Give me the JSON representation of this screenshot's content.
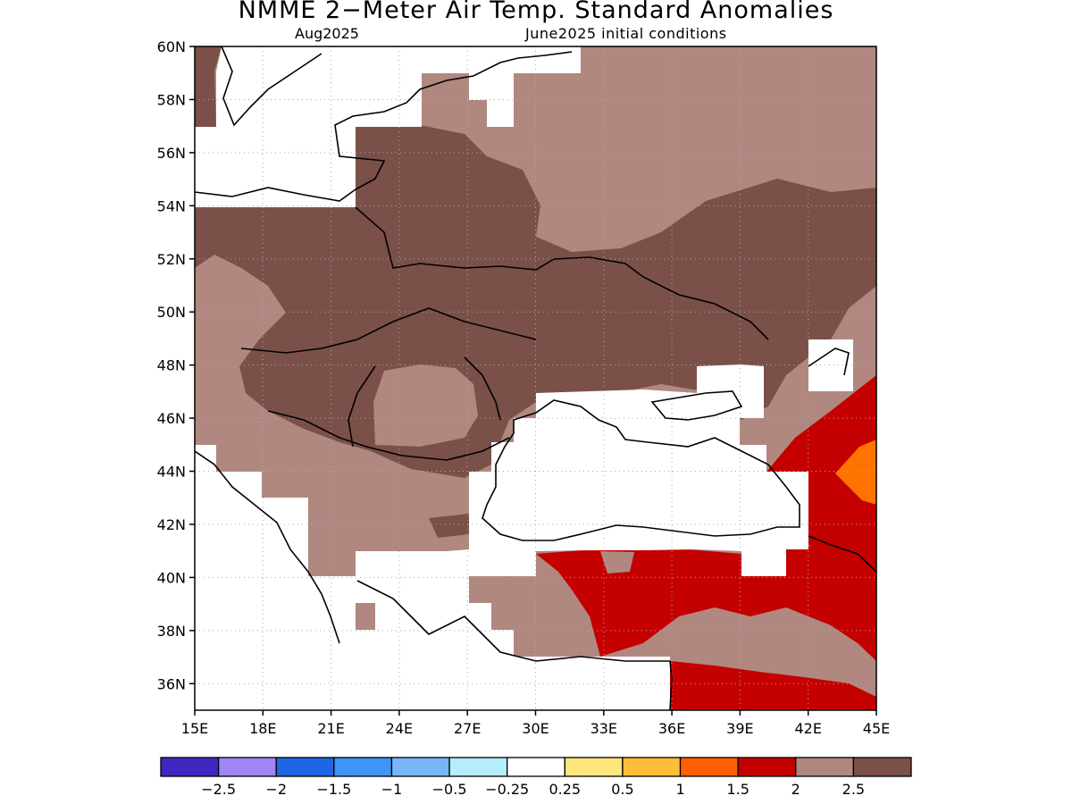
{
  "title": "NMME 2−Meter Air Temp. Standard Anomalies",
  "subtitle_left": "Aug2025",
  "subtitle_right": "June2025 initial conditions",
  "map": {
    "lon_range": [
      15,
      45
    ],
    "lat_range": [
      35,
      60
    ],
    "lon_ticks": [
      {
        "value": 15,
        "label": "15E"
      },
      {
        "value": 18,
        "label": "18E"
      },
      {
        "value": 21,
        "label": "21E"
      },
      {
        "value": 24,
        "label": "24E"
      },
      {
        "value": 27,
        "label": "27E"
      },
      {
        "value": 30,
        "label": "30E"
      },
      {
        "value": 33,
        "label": "33E"
      },
      {
        "value": 36,
        "label": "36E"
      },
      {
        "value": 39,
        "label": "39E"
      },
      {
        "value": 42,
        "label": "42E"
      },
      {
        "value": 45,
        "label": "45E"
      }
    ],
    "lat_ticks": [
      {
        "value": 60,
        "label": "60N"
      },
      {
        "value": 58,
        "label": "58N"
      },
      {
        "value": 56,
        "label": "56N"
      },
      {
        "value": 54,
        "label": "54N"
      },
      {
        "value": 52,
        "label": "52N"
      },
      {
        "value": 50,
        "label": "50N"
      },
      {
        "value": 48,
        "label": "48N"
      },
      {
        "value": 46,
        "label": "46N"
      },
      {
        "value": 44,
        "label": "44N"
      },
      {
        "value": 42,
        "label": "42N"
      },
      {
        "value": 40,
        "label": "40N"
      },
      {
        "value": 38,
        "label": "38N"
      },
      {
        "value": 36,
        "label": "36N"
      }
    ]
  },
  "colorbar": {
    "colors": [
      "#3f28c0",
      "#9e86f6",
      "#1f66e5",
      "#3d95f5",
      "#78b6f7",
      "#b4edfb",
      "#ffffff",
      "#ffe57c",
      "#ffbe39",
      "#ff5f00",
      "#c40000",
      "#b08880",
      "#7a5048"
    ],
    "labels": [
      "−2.5",
      "−2",
      "−1.5",
      "−1",
      "−0.5",
      "−0.25",
      "0.25",
      "0.5",
      "1",
      "1.5",
      "2",
      "2.5"
    ]
  }
}
